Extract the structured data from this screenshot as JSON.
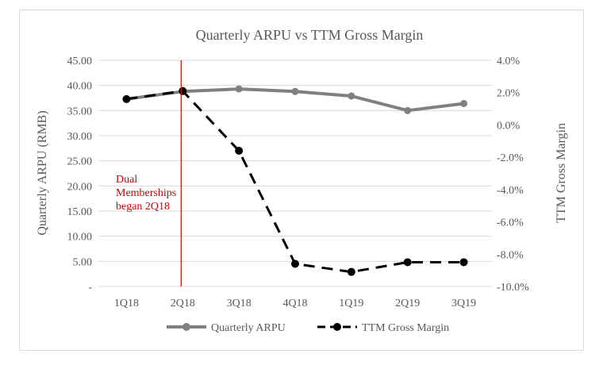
{
  "chart_data": {
    "type": "line",
    "title": "Quarterly ARPU vs TTM Gross Margin",
    "categories": [
      "1Q18",
      "2Q18",
      "3Q18",
      "4Q18",
      "1Q19",
      "2Q19",
      "3Q19"
    ],
    "y_left": {
      "label": "Quarterly ARPU (RMB)",
      "range": [
        0,
        45
      ],
      "ticks": [
        "-",
        "5.00",
        "10.00",
        "15.00",
        "20.00",
        "25.00",
        "30.00",
        "35.00",
        "40.00",
        "45.00"
      ]
    },
    "y_right": {
      "label": "TTM Gross Margin",
      "range": [
        -10,
        4
      ],
      "ticks": [
        "-10.0%",
        "-8.0%",
        "-6.0%",
        "-4.0%",
        "-2.0%",
        "0.0%",
        "2.0%",
        "4.0%"
      ]
    },
    "series": [
      {
        "name": "Quarterly ARPU",
        "axis": "left",
        "style": "solid",
        "color": "#808080",
        "values": [
          37.3,
          38.8,
          39.3,
          38.8,
          37.9,
          35.0,
          36.4
        ]
      },
      {
        "name": "TTM Gross Margin",
        "axis": "right",
        "style": "dashed",
        "color": "#000000",
        "values": [
          1.6,
          2.1,
          -1.6,
          -8.6,
          -9.1,
          -8.5,
          -8.5
        ]
      }
    ],
    "annotation": {
      "lines": [
        "Dual",
        "Memberships",
        "began 2Q18"
      ],
      "category": "2Q18",
      "color": "#e00000"
    },
    "legend_position": "bottom",
    "grid": "horizontal"
  }
}
